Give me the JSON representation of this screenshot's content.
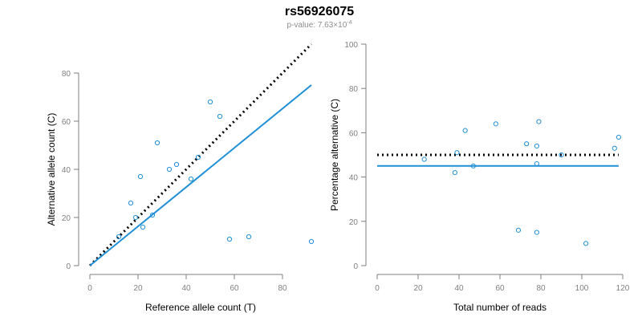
{
  "figure": {
    "title": "rs56926075",
    "subtitle_prefix": "p-value: 7.63×10",
    "subtitle_exponent": "-4"
  },
  "colors": {
    "points": "#1f8fd6",
    "fit_line": "#1f8fd6",
    "reference_line": "#000000",
    "axes": "#7f7f7f"
  },
  "chart_data": [
    {
      "type": "scatter",
      "xlabel": "Reference allele count (T)",
      "ylabel": "Alternative allele count (C)",
      "xlim": [
        0,
        92
      ],
      "ylim": [
        0,
        80
      ],
      "xticks": [
        0,
        20,
        40,
        60,
        80
      ],
      "yticks": [
        0,
        20,
        40,
        60,
        80
      ],
      "points": [
        {
          "x": 12,
          "y": 12
        },
        {
          "x": 17,
          "y": 26
        },
        {
          "x": 19,
          "y": 20
        },
        {
          "x": 21,
          "y": 37
        },
        {
          "x": 22,
          "y": 16
        },
        {
          "x": 26,
          "y": 21
        },
        {
          "x": 28,
          "y": 51
        },
        {
          "x": 33,
          "y": 40
        },
        {
          "x": 36,
          "y": 42
        },
        {
          "x": 42,
          "y": 36
        },
        {
          "x": 45,
          "y": 45
        },
        {
          "x": 50,
          "y": 68
        },
        {
          "x": 54,
          "y": 62
        },
        {
          "x": 58,
          "y": 11
        },
        {
          "x": 66,
          "y": 12
        },
        {
          "x": 92,
          "y": 10
        }
      ],
      "lines": [
        {
          "role": "reference",
          "style": "dotted",
          "from": [
            0,
            0
          ],
          "to": [
            92,
            92
          ]
        },
        {
          "role": "fit",
          "style": "solid",
          "from": [
            0,
            0
          ],
          "to": [
            92,
            75
          ]
        }
      ]
    },
    {
      "type": "scatter",
      "xlabel": "Total number of reads",
      "ylabel": "Percentage alternative (C)",
      "xlim": [
        0,
        120
      ],
      "ylim": [
        0,
        100
      ],
      "xticks": [
        0,
        20,
        40,
        60,
        80,
        100,
        120
      ],
      "yticks": [
        0,
        20,
        40,
        60,
        80,
        100
      ],
      "points": [
        {
          "x": 23,
          "y": 48
        },
        {
          "x": 38,
          "y": 42
        },
        {
          "x": 39,
          "y": 51
        },
        {
          "x": 43,
          "y": 61
        },
        {
          "x": 47,
          "y": 45
        },
        {
          "x": 58,
          "y": 64
        },
        {
          "x": 69,
          "y": 16
        },
        {
          "x": 73,
          "y": 55
        },
        {
          "x": 78,
          "y": 54
        },
        {
          "x": 78,
          "y": 46
        },
        {
          "x": 78,
          "y": 15
        },
        {
          "x": 79,
          "y": 65
        },
        {
          "x": 90,
          "y": 50
        },
        {
          "x": 102,
          "y": 10
        },
        {
          "x": 116,
          "y": 53
        },
        {
          "x": 118,
          "y": 58
        }
      ],
      "lines": [
        {
          "role": "reference",
          "style": "dotted",
          "from": [
            0,
            50
          ],
          "to": [
            118,
            50
          ]
        },
        {
          "role": "fit",
          "style": "solid",
          "from": [
            0,
            45
          ],
          "to": [
            118,
            45
          ]
        }
      ]
    }
  ]
}
